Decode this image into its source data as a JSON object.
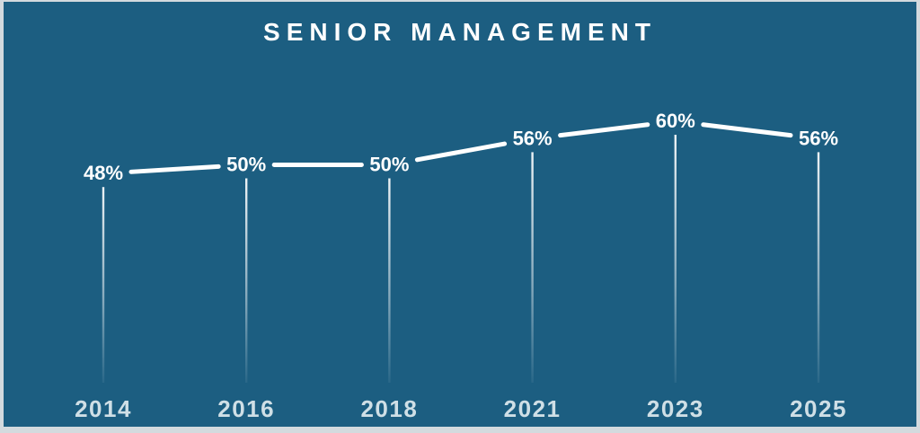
{
  "title": "SENIOR MANAGEMENT",
  "colors": {
    "background": "#1c5e81",
    "frame": "#d3dade",
    "line": "#ffffff",
    "value_label": "#ffffff",
    "year_label": "#cfdfe6"
  },
  "chart_data": {
    "type": "line",
    "title": "SENIOR MANAGEMENT",
    "categories": [
      "2014",
      "2016",
      "2018",
      "2021",
      "2023",
      "2025"
    ],
    "values": [
      48,
      50,
      50,
      56,
      60,
      56
    ],
    "value_labels": [
      "48%",
      "50%",
      "50%",
      "56%",
      "60%",
      "56%"
    ],
    "xlabel": "",
    "ylabel": "",
    "ylim": [
      0,
      100
    ],
    "grid": false,
    "legend": false,
    "annotations": "each data point labeled with its percentage; vertical fading drop lines from each point to the x-axis year labels"
  }
}
